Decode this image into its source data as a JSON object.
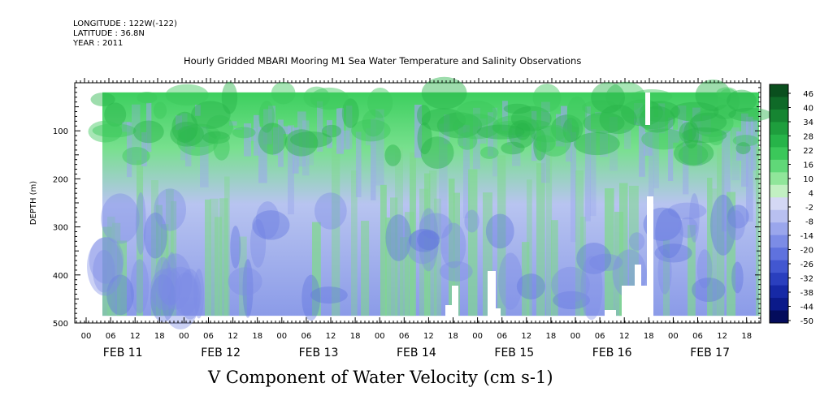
{
  "header": {
    "longitude": "LONGITUDE : 122W(-122)",
    "latitude": "LATITUDE : 36.8N",
    "year": "YEAR : 2011"
  },
  "chart_data": {
    "type": "heatmap",
    "title": "Hourly Gridded MBARI Mooring M1 Sea Water Temperature and Salinity Observations",
    "xlabel": "V Component of Water Velocity (cm s-1)",
    "ylabel": "DEPTH (m)",
    "y_range": [
      500,
      0
    ],
    "y_ticks": [
      100,
      200,
      300,
      400,
      500
    ],
    "x_hour_ticks": [
      "00",
      "06",
      "12",
      "18",
      "00",
      "06",
      "12",
      "18",
      "00",
      "06",
      "12",
      "18",
      "00",
      "06",
      "12",
      "18",
      "00",
      "06",
      "12",
      "18",
      "00",
      "06",
      "12",
      "18",
      "00",
      "06",
      "12",
      "18"
    ],
    "x_day_labels": [
      "FEB 11",
      "FEB 12",
      "FEB 13",
      "FEB 14",
      "FEB 15",
      "FEB 16",
      "FEB 17"
    ],
    "colorbar_labels": [
      "46",
      "40",
      "34",
      "28",
      "22",
      "16",
      "10",
      "4",
      "-2",
      "-8",
      "-14",
      "-20",
      "-26",
      "-32",
      "-38",
      "-44",
      "-50"
    ],
    "colorbar_colors": [
      "#0a4f1e",
      "#0f6a28",
      "#168532",
      "#1e9e3d",
      "#27b449",
      "#3bc85a",
      "#60d878",
      "#90e69a",
      "#c2f0c2",
      "#d4d8f4",
      "#b8c0f0",
      "#9aa6ec",
      "#7c8ce6",
      "#5f72de",
      "#4257d0",
      "#2a3fbe",
      "#1629a6",
      "#0b1a8a",
      "#040c5c"
    ],
    "x_range": [
      "FEB 10 19:00",
      "FEB 17 19:00"
    ],
    "data_region": {
      "depth_top": 20,
      "depth_bottom": 485
    },
    "field_pattern": "Positive (green) velocities dominate above ~200 m; negative (blue) values dominate below ~250 m, with vertical streaks of alternating sign. Missing data (white) near the bottom around FEB 14-16."
  }
}
